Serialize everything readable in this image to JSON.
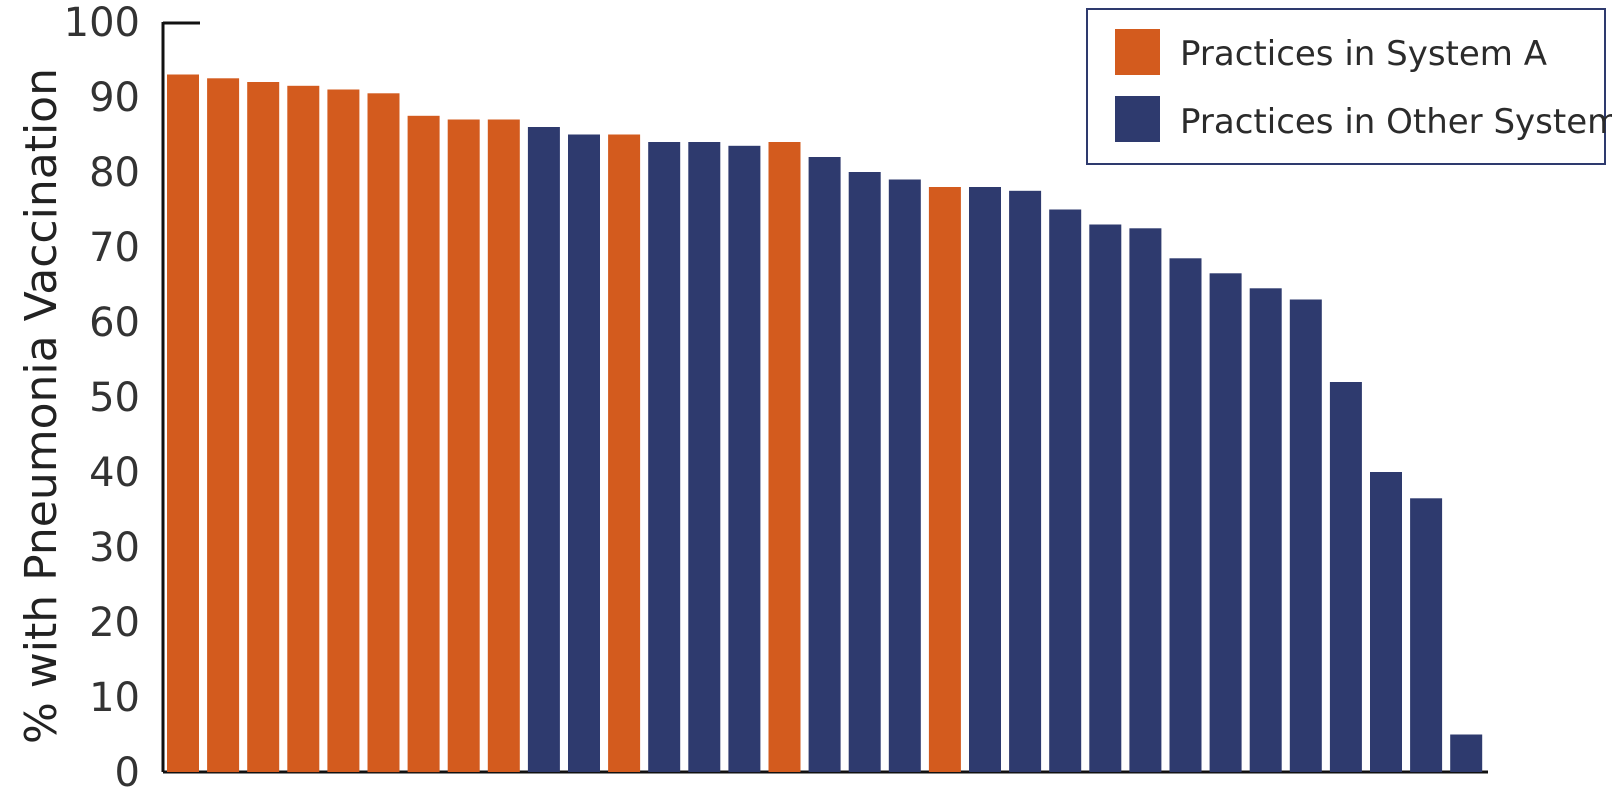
{
  "chart_data": {
    "type": "bar",
    "title": "",
    "xlabel": "",
    "ylabel": "% with Pneumonia Vaccination",
    "ylim": [
      0,
      100
    ],
    "yticks": [
      0,
      10,
      20,
      30,
      40,
      50,
      60,
      70,
      80,
      90,
      100
    ],
    "grid": false,
    "legend_position": "top-right",
    "colors": {
      "System A": "#d35b1e",
      "Other": "#2e3a6e",
      "axis": "#111111",
      "legend_border": "#2e3a6e"
    },
    "legend": [
      {
        "key": "A",
        "label": "Practices in System A"
      },
      {
        "key": "O",
        "label": "Practices in Other Systems"
      }
    ],
    "values": [
      93,
      92.5,
      92,
      91.5,
      91,
      90.5,
      87.5,
      87,
      87,
      86,
      85,
      85,
      84,
      84,
      83.5,
      84,
      82,
      80,
      79,
      78,
      78,
      77.5,
      75,
      73,
      72.5,
      68.5,
      66.5,
      64.5,
      63,
      52,
      40,
      36.5,
      5
    ],
    "groups": [
      "A",
      "A",
      "A",
      "A",
      "A",
      "A",
      "A",
      "A",
      "A",
      "O",
      "O",
      "A",
      "O",
      "O",
      "O",
      "A",
      "O",
      "O",
      "O",
      "A",
      "O",
      "O",
      "O",
      "O",
      "O",
      "O",
      "O",
      "O",
      "O",
      "O",
      "O",
      "O",
      "O"
    ]
  }
}
